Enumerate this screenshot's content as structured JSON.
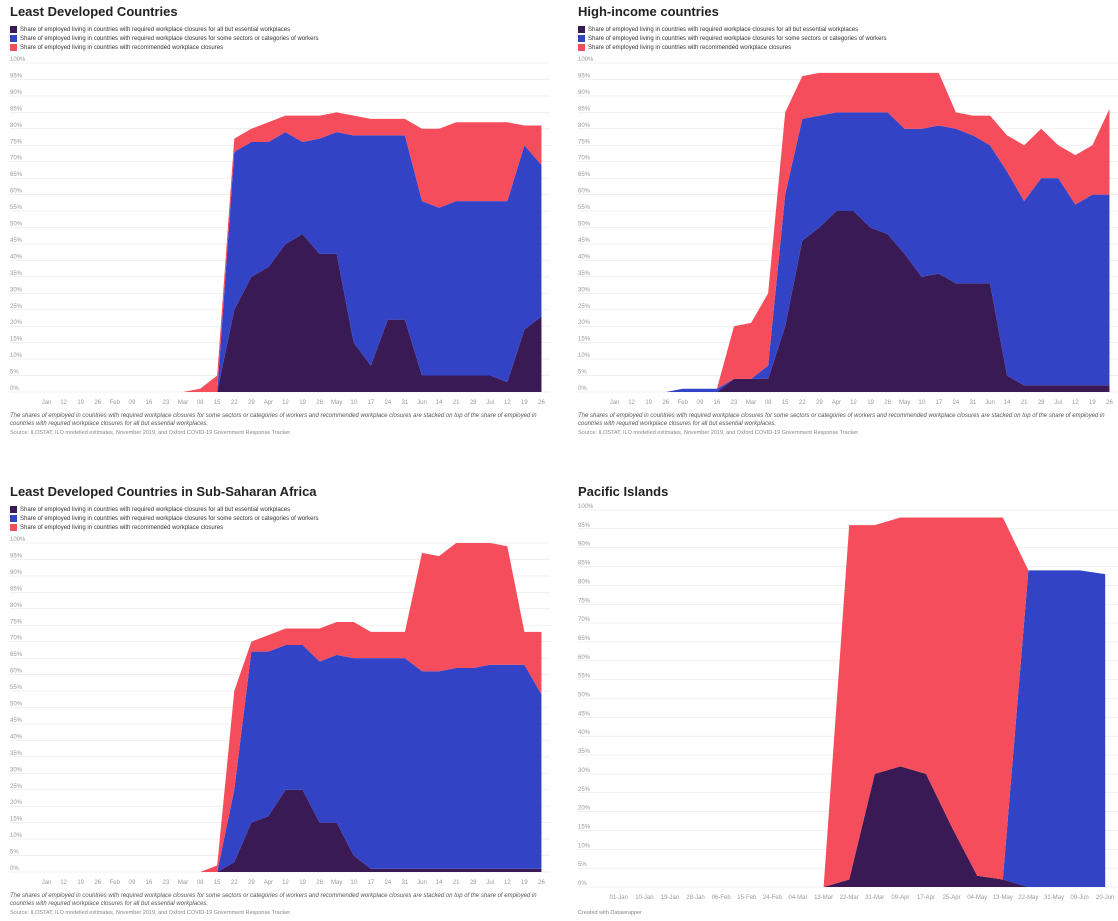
{
  "chart_data": [
    {
      "type": "area",
      "stacked": true,
      "title": "Least Developed Countries",
      "categories": [
        "Jan",
        "12",
        "19",
        "26",
        "Feb",
        "09",
        "16",
        "23",
        "Mar",
        "08",
        "15",
        "22",
        "29",
        "Apr",
        "12",
        "19",
        "26",
        "May",
        "10",
        "17",
        "24",
        "31",
        "Jun",
        "14",
        "21",
        "28",
        "Jul",
        "12",
        "19",
        "26"
      ],
      "series": [
        {
          "name": "Share of employed living in countries with required workplace closures for all but essential workplaces",
          "color": "#3a1a55",
          "values": [
            0,
            0,
            0,
            0,
            0,
            0,
            0,
            0,
            0,
            0,
            0,
            25,
            35,
            38,
            45,
            48,
            42,
            42,
            15,
            8,
            22,
            22,
            5,
            5,
            5,
            5,
            5,
            3,
            19,
            23
          ]
        },
        {
          "name": "Share of employed living in countries with required workplace closures for some sectors or categories of workers",
          "color": "#3343c6",
          "values": [
            0,
            0,
            0,
            0,
            0,
            0,
            0,
            0,
            0,
            0,
            0,
            48,
            41,
            38,
            34,
            28,
            35,
            37,
            63,
            70,
            56,
            56,
            53,
            51,
            53,
            53,
            53,
            55,
            56,
            46
          ]
        },
        {
          "name": "Share of employed living in countries with recommended workplace closures",
          "color": "#f64d5c",
          "values": [
            0,
            0,
            0,
            0,
            0,
            0,
            0,
            0,
            0,
            1,
            5,
            4,
            4,
            6,
            5,
            8,
            7,
            6,
            6,
            5,
            5,
            5,
            22,
            24,
            24,
            24,
            24,
            24,
            6,
            12
          ]
        }
      ],
      "ylim": [
        0,
        100
      ],
      "yticks": [
        {
          "value": 0,
          "label": "0%"
        },
        {
          "value": 5,
          "label": "5%"
        },
        {
          "value": 10,
          "label": "10%"
        },
        {
          "value": 15,
          "label": "15%"
        },
        {
          "value": 20,
          "label": "20%"
        },
        {
          "value": 25,
          "label": "25%"
        },
        {
          "value": 30,
          "label": "30%"
        },
        {
          "value": 35,
          "label": "35%"
        },
        {
          "value": 40,
          "label": "40%"
        },
        {
          "value": 45,
          "label": "45%"
        },
        {
          "value": 50,
          "label": "50%"
        },
        {
          "value": 55,
          "label": "55%"
        },
        {
          "value": 60,
          "label": "60%"
        },
        {
          "value": 65,
          "label": "65%"
        },
        {
          "value": 70,
          "label": "70%"
        },
        {
          "value": 75,
          "label": "75%"
        },
        {
          "value": 80,
          "label": "80%"
        },
        {
          "value": 85,
          "label": "85%"
        },
        {
          "value": 90,
          "label": "90%"
        },
        {
          "value": 95,
          "label": "95%"
        },
        {
          "value": 100,
          "label": "100%"
        }
      ],
      "grid": true,
      "note": "The shares of employed in countries with required workplace closures for some sectors or categories of workers and recommended workplace closures are stacked on top of the share of employed in countries with required workplace closures for all but essential workplaces.",
      "source": "Source: ILOSTAT, ILO modelled estimates, November 2019, and Oxford COVID-19 Government Response Tracker."
    },
    {
      "type": "area",
      "stacked": true,
      "title": "High-income countries",
      "categories": [
        "Jan",
        "12",
        "19",
        "26",
        "Feb",
        "09",
        "16",
        "23",
        "Mar",
        "08",
        "15",
        "22",
        "29",
        "Apr",
        "12",
        "19",
        "26",
        "May",
        "10",
        "17",
        "24",
        "31",
        "Jun",
        "14",
        "21",
        "28",
        "Jul",
        "12",
        "19",
        "26"
      ],
      "series": [
        {
          "name": "Share of employed living in countries with required workplace closures for all but essential workplaces",
          "color": "#3a1a55",
          "values": [
            0,
            0,
            0,
            0,
            0,
            0,
            0,
            4,
            4,
            4,
            20,
            46,
            50,
            55,
            55,
            50,
            48,
            42,
            35,
            36,
            33,
            33,
            33,
            5,
            2,
            2,
            2,
            2,
            2,
            2
          ]
        },
        {
          "name": "Share of employed living in countries with required workplace closures for some sectors or categories of workers",
          "color": "#3343c6",
          "values": [
            0,
            0,
            0,
            0,
            1,
            1,
            1,
            0,
            0,
            4,
            40,
            37,
            34,
            30,
            30,
            35,
            37,
            38,
            45,
            45,
            47,
            45,
            42,
            62,
            56,
            63,
            63,
            55,
            58,
            58
          ]
        },
        {
          "name": "Share of employed living in countries with recommended workplace closures",
          "color": "#f64d5c",
          "values": [
            0,
            0,
            0,
            0,
            0,
            0,
            0,
            16,
            17,
            22,
            25,
            13,
            13,
            12,
            12,
            12,
            12,
            17,
            17,
            16,
            5,
            6,
            9,
            11,
            17,
            15,
            10,
            15,
            15,
            26
          ]
        }
      ],
      "ylim": [
        0,
        100
      ],
      "yticks": [
        {
          "value": 0,
          "label": "0%"
        },
        {
          "value": 5,
          "label": "5%"
        },
        {
          "value": 10,
          "label": "10%"
        },
        {
          "value": 15,
          "label": "15%"
        },
        {
          "value": 20,
          "label": "20%"
        },
        {
          "value": 25,
          "label": "25%"
        },
        {
          "value": 30,
          "label": "30%"
        },
        {
          "value": 35,
          "label": "35%"
        },
        {
          "value": 40,
          "label": "40%"
        },
        {
          "value": 45,
          "label": "45%"
        },
        {
          "value": 50,
          "label": "50%"
        },
        {
          "value": 55,
          "label": "55%"
        },
        {
          "value": 60,
          "label": "60%"
        },
        {
          "value": 65,
          "label": "65%"
        },
        {
          "value": 70,
          "label": "70%"
        },
        {
          "value": 75,
          "label": "75%"
        },
        {
          "value": 80,
          "label": "80%"
        },
        {
          "value": 85,
          "label": "85%"
        },
        {
          "value": 90,
          "label": "90%"
        },
        {
          "value": 95,
          "label": "95%"
        },
        {
          "value": 100,
          "label": "100%"
        }
      ],
      "grid": true,
      "note": "The shares of employed in countries with required workplace closures for some sectors or categories of workers and recommended workplace closures are stacked on top of the share of employed in countries with required workplace closures for all but essential workplaces.",
      "source": "Source: ILOSTAT, ILO modelled estimates, November 2019, and Oxford COVID-19 Government Response Tracker."
    },
    {
      "type": "area",
      "stacked": true,
      "title": "Least Developed Countries in Sub-Saharan Africa",
      "categories": [
        "Jan",
        "12",
        "19",
        "26",
        "Feb",
        "09",
        "16",
        "23",
        "Mar",
        "08",
        "15",
        "22",
        "29",
        "Apr",
        "12",
        "19",
        "26",
        "May",
        "10",
        "17",
        "24",
        "31",
        "Jun",
        "14",
        "21",
        "28",
        "Jul",
        "12",
        "19",
        "26"
      ],
      "series": [
        {
          "name": "Share of employed living in countries with required workplace closures for all but essential workplaces",
          "color": "#3a1a55",
          "values": [
            0,
            0,
            0,
            0,
            0,
            0,
            0,
            0,
            0,
            0,
            0,
            3,
            15,
            17,
            25,
            25,
            15,
            15,
            5,
            1,
            1,
            1,
            1,
            1,
            1,
            1,
            1,
            1,
            1,
            1
          ]
        },
        {
          "name": "Share of employed living in countries with required workplace closures for some sectors or categories of workers",
          "color": "#3343c6",
          "values": [
            0,
            0,
            0,
            0,
            0,
            0,
            0,
            0,
            0,
            0,
            0,
            22,
            52,
            50,
            44,
            44,
            49,
            51,
            60,
            64,
            64,
            64,
            60,
            60,
            61,
            61,
            62,
            62,
            62,
            53
          ]
        },
        {
          "name": "Share of employed living in countries with recommended workplace closures",
          "color": "#f64d5c",
          "values": [
            0,
            0,
            0,
            0,
            0,
            0,
            0,
            0,
            0,
            0,
            2,
            30,
            3,
            5,
            5,
            5,
            10,
            10,
            11,
            8,
            8,
            8,
            36,
            35,
            38,
            38,
            37,
            36,
            10,
            19
          ]
        }
      ],
      "ylim": [
        0,
        100
      ],
      "yticks": [
        {
          "value": 0,
          "label": "0%"
        },
        {
          "value": 5,
          "label": "5%"
        },
        {
          "value": 10,
          "label": "10%"
        },
        {
          "value": 15,
          "label": "15%"
        },
        {
          "value": 20,
          "label": "20%"
        },
        {
          "value": 25,
          "label": "25%"
        },
        {
          "value": 30,
          "label": "30%"
        },
        {
          "value": 35,
          "label": "35%"
        },
        {
          "value": 40,
          "label": "40%"
        },
        {
          "value": 45,
          "label": "45%"
        },
        {
          "value": 50,
          "label": "50%"
        },
        {
          "value": 55,
          "label": "55%"
        },
        {
          "value": 60,
          "label": "60%"
        },
        {
          "value": 65,
          "label": "65%"
        },
        {
          "value": 70,
          "label": "70%"
        },
        {
          "value": 75,
          "label": "75%"
        },
        {
          "value": 80,
          "label": "80%"
        },
        {
          "value": 85,
          "label": "85%"
        },
        {
          "value": 90,
          "label": "90%"
        },
        {
          "value": 95,
          "label": "95%"
        },
        {
          "value": 100,
          "label": "100%"
        }
      ],
      "grid": true,
      "note": "The shares of employed in countries with required workplace closures for some sectors or categories of workers and recommended workplace closures are stacked on top of the share of employed in countries with required workplace closures for all but essential workplaces.",
      "source": "Source: ILOSTAT, ILO modelled estimates, November 2019, and Oxford COVID-19 Government Response Tracker."
    },
    {
      "type": "area",
      "stacked": true,
      "title": "Pacific Islands",
      "categories": [
        "01-Jan",
        "10-Jan",
        "19-Jan",
        "28-Jan",
        "06-Feb",
        "15-Feb",
        "24-Feb",
        "04-Mar",
        "13-Mar",
        "22-Mar",
        "31-Mar",
        "09-Apr",
        "17-Apr",
        "25-Apr",
        "04-May",
        "13-May",
        "22-May",
        "31-May",
        "09-Jun",
        "20-Jun"
      ],
      "series": [
        {
          "color": "#3a1a55",
          "values": [
            0,
            0,
            0,
            0,
            0,
            0,
            0,
            0,
            0,
            2,
            30,
            32,
            30,
            16,
            3,
            2,
            0,
            0,
            0,
            0
          ]
        },
        {
          "color": "#3343c6",
          "values": [
            0,
            0,
            0,
            0,
            0,
            0,
            0,
            0,
            0,
            0,
            0,
            0,
            0,
            0,
            0,
            0,
            84,
            84,
            84,
            83
          ]
        },
        {
          "color": "#f64d5c",
          "values": [
            0,
            0,
            0,
            0,
            0,
            0,
            0,
            0,
            0,
            94,
            66,
            66,
            68,
            82,
            95,
            96,
            0,
            0,
            0,
            0
          ]
        }
      ],
      "ylim": [
        0,
        100
      ],
      "yticks": [
        {
          "value": 0,
          "label": "0%"
        },
        {
          "value": 5,
          "label": "5%"
        },
        {
          "value": 10,
          "label": "10%"
        },
        {
          "value": 15,
          "label": "15%"
        },
        {
          "value": 20,
          "label": "20%"
        },
        {
          "value": 25,
          "label": "25%"
        },
        {
          "value": 30,
          "label": "30%"
        },
        {
          "value": 35,
          "label": "35%"
        },
        {
          "value": 40,
          "label": "40%"
        },
        {
          "value": 45,
          "label": "45%"
        },
        {
          "value": 50,
          "label": "50%"
        },
        {
          "value": 55,
          "label": "55%"
        },
        {
          "value": 60,
          "label": "60%"
        },
        {
          "value": 65,
          "label": "65%"
        },
        {
          "value": 70,
          "label": "70%"
        },
        {
          "value": 75,
          "label": "75%"
        },
        {
          "value": 80,
          "label": "80%"
        },
        {
          "value": 85,
          "label": "85%"
        },
        {
          "value": 90,
          "label": "90%"
        },
        {
          "value": 95,
          "label": "95%"
        },
        {
          "value": 100,
          "label": "100%"
        }
      ],
      "grid": true,
      "credit": "Created with Datawrapper"
    }
  ]
}
